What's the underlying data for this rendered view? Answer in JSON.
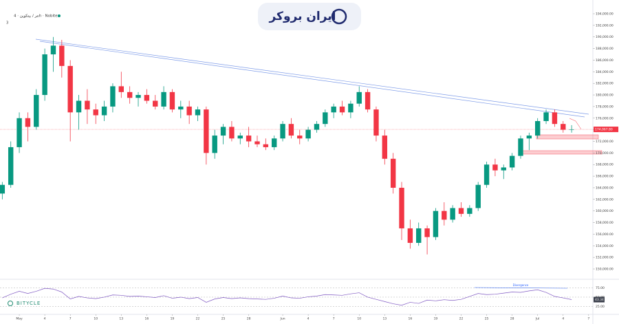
{
  "header": {
    "symbol": "تتر / بیتکوین · 4h · Nobitex",
    "count": "3",
    "brand": "ایران بروکر",
    "watermark": "BITYCLE",
    "annotation": "Divergence"
  },
  "chart_data": [
    {
      "type": "candlestick",
      "colors": {
        "up": "#089981",
        "down": "#f23645"
      },
      "x": [
        -2,
        -1,
        0,
        1,
        2,
        3,
        4,
        5,
        6,
        7,
        8,
        9,
        10,
        11,
        12,
        13,
        14,
        15,
        16,
        17,
        18,
        19,
        20,
        21,
        22,
        23,
        24,
        25,
        26,
        27,
        28,
        29,
        30,
        31,
        32,
        33,
        34,
        35,
        36,
        37,
        38,
        39,
        40,
        41,
        42,
        43,
        44,
        45,
        46,
        47,
        48,
        49,
        50,
        51,
        52,
        53,
        54,
        55,
        56,
        57,
        58,
        59,
        60,
        61,
        62,
        63,
        64,
        65
      ],
      "open": [
        163000,
        164500,
        171000,
        176000,
        174500,
        180000,
        187000,
        188500,
        185000,
        177000,
        179000,
        177500,
        176500,
        178000,
        181500,
        180500,
        179500,
        180000,
        179000,
        178000,
        180500,
        177500,
        178000,
        176500,
        177500,
        170000,
        173000,
        174500,
        172500,
        173000,
        172000,
        171500,
        171000,
        172500,
        175000,
        173000,
        172500,
        174000,
        175000,
        177000,
        178000,
        177000,
        178500,
        180500,
        177500,
        173000,
        169000,
        164000,
        157000,
        154500,
        157000,
        155500,
        160000,
        158500,
        160500,
        159500,
        160500,
        164500,
        168000,
        167000,
        167500,
        169500,
        172500,
        173000,
        175500,
        177000,
        175000,
        174000
      ],
      "high": [
        165000,
        172000,
        177000,
        177000,
        181000,
        188000,
        190000,
        189500,
        186000,
        180000,
        181000,
        178500,
        179000,
        182000,
        184000,
        181500,
        180500,
        181000,
        180000,
        181500,
        181000,
        179000,
        179000,
        178000,
        178000,
        174000,
        175000,
        175500,
        173500,
        174500,
        173000,
        172500,
        173000,
        175500,
        176000,
        174000,
        174500,
        175500,
        177500,
        178500,
        179000,
        179000,
        181500,
        181000,
        178000,
        174000,
        170000,
        165000,
        158500,
        158000,
        157500,
        160500,
        161500,
        161000,
        161500,
        161000,
        165000,
        168500,
        169000,
        168000,
        170000,
        173000,
        173500,
        176000,
        177500,
        177500,
        175500,
        174800
      ],
      "low": [
        162000,
        164000,
        170000,
        172000,
        174000,
        179000,
        184000,
        183000,
        172000,
        174000,
        175000,
        175000,
        175500,
        177000,
        179500,
        178500,
        178000,
        178500,
        177500,
        177500,
        177000,
        176000,
        175000,
        175500,
        168000,
        169000,
        171500,
        172000,
        171500,
        171000,
        171000,
        170500,
        170500,
        172000,
        172500,
        171500,
        172000,
        173500,
        174500,
        176000,
        176500,
        176000,
        178000,
        177000,
        172000,
        168000,
        163000,
        155000,
        153500,
        154000,
        152500,
        155000,
        157500,
        158000,
        159000,
        159000,
        160000,
        164000,
        166000,
        165500,
        167000,
        169000,
        170500,
        172500,
        175000,
        174500,
        173500,
        173500
      ],
      "close": [
        164500,
        171000,
        176000,
        174500,
        180000,
        187000,
        188500,
        185000,
        177000,
        179000,
        177500,
        176500,
        178000,
        181500,
        180500,
        179500,
        180000,
        179000,
        178000,
        180500,
        177500,
        178000,
        176500,
        177500,
        170000,
        173000,
        174500,
        172500,
        173000,
        172000,
        171500,
        171000,
        172500,
        175000,
        173000,
        172500,
        174000,
        175000,
        177000,
        178000,
        177000,
        178500,
        180500,
        177500,
        173000,
        169000,
        164000,
        157000,
        154500,
        157000,
        155500,
        160000,
        158500,
        160500,
        159500,
        160500,
        164500,
        168000,
        167000,
        167500,
        169500,
        172500,
        173000,
        175500,
        177000,
        175000,
        174000,
        174067.8
      ],
      "last_price": {
        "value": 174067.8,
        "label": "174,067.80"
      },
      "xlim": [
        -2.27,
        67.5
      ],
      "xticks": [
        {
          "value": 0,
          "label": "May"
        },
        {
          "value": 3,
          "label": "4"
        },
        {
          "value": 6,
          "label": "7"
        },
        {
          "value": 9,
          "label": "10"
        },
        {
          "value": 12,
          "label": "13"
        },
        {
          "value": 15,
          "label": "16"
        },
        {
          "value": 18,
          "label": "19"
        },
        {
          "value": 21,
          "label": "22"
        },
        {
          "value": 24,
          "label": "25"
        },
        {
          "value": 27,
          "label": "28"
        },
        {
          "value": 31,
          "label": "Jun"
        },
        {
          "value": 34,
          "label": "4"
        },
        {
          "value": 37,
          "label": "7"
        },
        {
          "value": 40,
          "label": "10"
        },
        {
          "value": 43,
          "label": "13"
        },
        {
          "value": 46,
          "label": "16"
        },
        {
          "value": 49,
          "label": "19"
        },
        {
          "value": 52,
          "label": "22"
        },
        {
          "value": 55,
          "label": "25"
        },
        {
          "value": 58,
          "label": "28"
        },
        {
          "value": 61,
          "label": "Jul"
        },
        {
          "value": 64,
          "label": "4"
        },
        {
          "value": 67,
          "label": "7"
        }
      ],
      "ylim": [
        150000,
        194000
      ],
      "yticks": [
        {
          "value": 150000,
          "label": "150,000.00"
        },
        {
          "value": 152000,
          "label": "152,000.00"
        },
        {
          "value": 154000,
          "label": "154,000.00"
        },
        {
          "value": 156000,
          "label": "156,000.00"
        },
        {
          "value": 158000,
          "label": "158,000.00"
        },
        {
          "value": 160000,
          "label": "160,000.00"
        },
        {
          "value": 162000,
          "label": "162,000.00"
        },
        {
          "value": 164000,
          "label": "164,000.00"
        },
        {
          "value": 166000,
          "label": "166,000.00"
        },
        {
          "value": 168000,
          "label": "168,000.00"
        },
        {
          "value": 170000,
          "label": "170,000.00"
        },
        {
          "value": 172000,
          "label": "172,000.00"
        },
        {
          "value": 174000,
          "label": "174,000.00"
        },
        {
          "value": 176000,
          "label": "176,000.00"
        },
        {
          "value": 178000,
          "label": "178,000.00"
        },
        {
          "value": 180000,
          "label": "180,000.00"
        },
        {
          "value": 182000,
          "label": "182,000.00"
        },
        {
          "value": 184000,
          "label": "184,000.00"
        },
        {
          "value": 186000,
          "label": "186,000.00"
        },
        {
          "value": 188000,
          "label": "188,000.00"
        },
        {
          "value": 190000,
          "label": "190,000.00"
        },
        {
          "value": 192000,
          "label": "192,000.00"
        },
        {
          "value": 194000,
          "label": "194,000.00"
        }
      ]
    },
    {
      "type": "line",
      "color": "#7e57c2",
      "values": [
        48,
        58,
        66,
        60,
        66,
        74,
        72,
        64,
        45,
        52,
        48,
        46,
        50,
        56,
        55,
        52,
        53,
        51,
        49,
        54,
        47,
        50,
        46,
        49,
        36,
        45,
        49,
        46,
        48,
        46,
        45,
        44,
        47,
        53,
        48,
        47,
        51,
        53,
        57,
        56,
        55,
        59,
        62,
        50,
        44,
        38,
        32,
        28,
        36,
        33,
        42,
        40,
        43,
        41,
        44,
        52,
        60,
        57,
        58,
        61,
        64,
        63,
        67,
        70,
        63,
        52,
        48,
        43.34
      ],
      "last_value": {
        "value": 43.34,
        "label": "43.34"
      },
      "ylim": [
        5,
        93
      ],
      "yticks": [
        {
          "value": 75,
          "label": "75.00"
        },
        {
          "value": 50,
          "label": "50.00"
        },
        {
          "value": 25,
          "label": "25.00"
        }
      ]
    }
  ]
}
